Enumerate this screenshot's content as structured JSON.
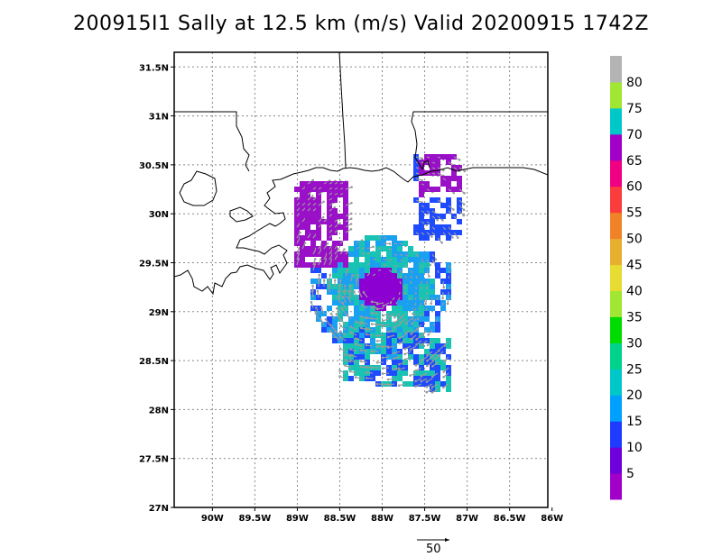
{
  "title": "200915I1 Sally at 12.5 km (m/s) Valid 20200915  1742Z",
  "map": {
    "lat_range": [
      27.0,
      31.65
    ],
    "lon_range": [
      -90.45,
      -86.05
    ],
    "lat_ticks": [
      {
        "value": 31.5,
        "label": "31.5N"
      },
      {
        "value": 31.0,
        "label": "31N"
      },
      {
        "value": 30.5,
        "label": "30.5N"
      },
      {
        "value": 30.0,
        "label": "30N"
      },
      {
        "value": 29.5,
        "label": "29.5N"
      },
      {
        "value": 29.0,
        "label": "29N"
      },
      {
        "value": 28.5,
        "label": "28.5N"
      },
      {
        "value": 28.0,
        "label": "28N"
      },
      {
        "value": 27.5,
        "label": "27.5N"
      },
      {
        "value": 27.0,
        "label": "27N"
      }
    ],
    "lon_ticks": [
      {
        "value": -90.0,
        "label": "90W"
      },
      {
        "value": -89.5,
        "label": "89.5W"
      },
      {
        "value": -89.0,
        "label": "89W"
      },
      {
        "value": -88.5,
        "label": "88.5W"
      },
      {
        "value": -88.0,
        "label": "88W"
      },
      {
        "value": -87.5,
        "label": "87.5W"
      },
      {
        "value": -87.0,
        "label": "87W"
      },
      {
        "value": -86.5,
        "label": "86.5W"
      },
      {
        "value": -86.0,
        "label": "86W"
      }
    ],
    "grid": "dotted",
    "storm_center": {
      "lat": 29.27,
      "lon": -88.05
    }
  },
  "vector_scale": {
    "label": "50",
    "unit": "m/s"
  },
  "colorbar": {
    "labels": [
      "80",
      "75",
      "70",
      "65",
      "60",
      "55",
      "50",
      "45",
      "40",
      "35",
      "30",
      "25",
      "20",
      "15",
      "10",
      "5"
    ],
    "colors_bottom_to_top": [
      "#a000c8",
      "#6e00dc",
      "#1e3cff",
      "#00a0ff",
      "#00c8c8",
      "#00d28c",
      "#00dc00",
      "#a0e632",
      "#e6dc32",
      "#e6af2d",
      "#f08228",
      "#fa3c3c",
      "#f00082",
      "#a000c8",
      "#00c8c8",
      "#a0e632",
      "#b4b4b4"
    ]
  }
}
